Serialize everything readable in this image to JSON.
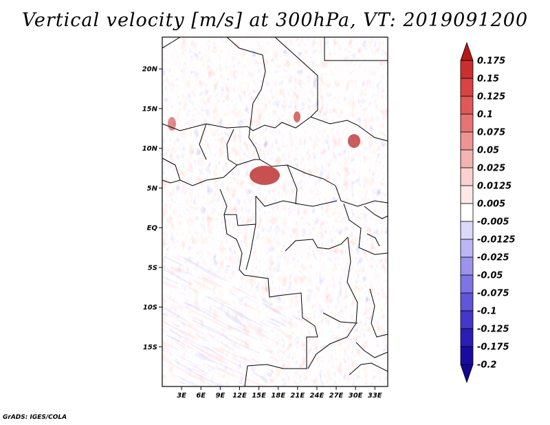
{
  "title": "Vertical velocity [m/s] at 300hPa, VT: 2019091200",
  "credit": "GrADS: IGES/COLA",
  "map": {
    "lat_range": [
      -20,
      24
    ],
    "lon_range": [
      0,
      35
    ],
    "lat_labels": [
      {
        "lat": 20,
        "text": "20N"
      },
      {
        "lat": 15,
        "text": "15N"
      },
      {
        "lat": 10,
        "text": "10N"
      },
      {
        "lat": 5,
        "text": "5N"
      },
      {
        "lat": 0,
        "text": "EQ"
      },
      {
        "lat": -5,
        "text": "5S"
      },
      {
        "lat": -10,
        "text": "10S"
      },
      {
        "lat": -15,
        "text": "15S"
      }
    ],
    "lon_labels": [
      {
        "lon": 3,
        "text": "3E"
      },
      {
        "lon": 6,
        "text": "6E"
      },
      {
        "lon": 9,
        "text": "9E"
      },
      {
        "lon": 12,
        "text": "12E"
      },
      {
        "lon": 15,
        "text": "15E"
      },
      {
        "lon": 18,
        "text": "18E"
      },
      {
        "lon": 21,
        "text": "21E"
      },
      {
        "lon": 24,
        "text": "24E"
      },
      {
        "lon": 27,
        "text": "27E"
      },
      {
        "lon": 30,
        "text": "30E"
      },
      {
        "lon": 33,
        "text": "33E"
      }
    ]
  },
  "colorbar": {
    "labels": [
      "0.175",
      "0.15",
      "0.125",
      "0.1",
      "0.075",
      "0.05",
      "0.025",
      "0.0125",
      "0.005",
      "-0.005",
      "-0.0125",
      "-0.025",
      "-0.05",
      "-0.075",
      "-0.1",
      "-0.125",
      "-0.175",
      "-0.2"
    ],
    "colors": [
      "#b41818",
      "#c83030",
      "#d84444",
      "#e05858",
      "#e67474",
      "#ee9494",
      "#f4b2b2",
      "#fad0d0",
      "#fde8e8",
      "#ffffff",
      "#dcd8fa",
      "#bcb6f4",
      "#9c94ec",
      "#7e74e4",
      "#6056d8",
      "#4438c8",
      "#2a1eb4",
      "#180ca0",
      "#100890"
    ]
  }
}
